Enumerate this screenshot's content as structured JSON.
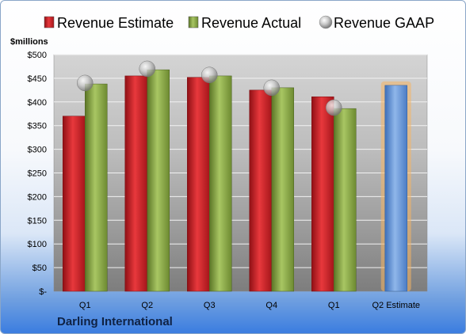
{
  "company": "Darling International",
  "chart_data": {
    "type": "bar",
    "unit_label": "$millions",
    "categories": [
      "Q1",
      "Q2",
      "Q3",
      "Q4",
      "Q1",
      "Q2 Estimate"
    ],
    "series": [
      {
        "name": "Revenue Estimate",
        "values": [
          370,
          455,
          452,
          425,
          411,
          null
        ],
        "color": "#d9262b"
      },
      {
        "name": "Revenue Actual",
        "values": [
          438,
          468,
          455,
          430,
          386,
          null
        ],
        "color": "#8fb04a"
      },
      {
        "name": "Revenue GAAP",
        "values": [
          440,
          470,
          457,
          430,
          388,
          null
        ],
        "color": "#b8b8b8"
      }
    ],
    "projection": {
      "category": "Q2 Estimate",
      "value": 435,
      "color": "#5b8ed6",
      "highlight": "#f5b462"
    },
    "y_ticks": [
      "$-",
      "$50",
      "$100",
      "$150",
      "$200",
      "$250",
      "$300",
      "$350",
      "$400",
      "$450",
      "$500"
    ],
    "ylim": [
      0,
      500
    ],
    "grid": true,
    "legend_position": "top"
  }
}
